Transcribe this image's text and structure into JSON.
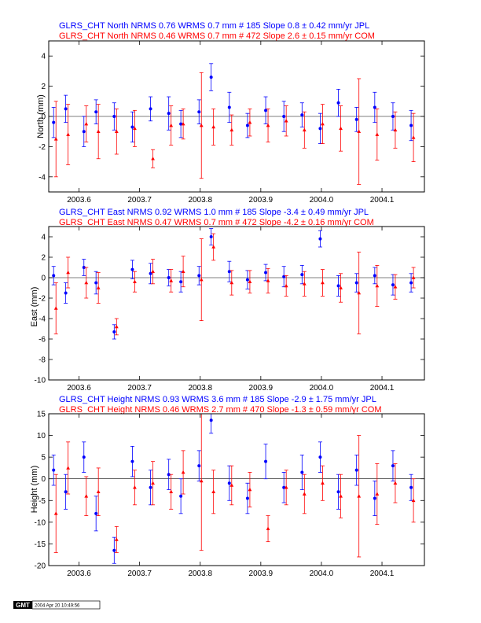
{
  "colors": {
    "blue": "#0000ff",
    "red": "#ff0000",
    "axis": "#000000"
  },
  "panels": [
    {
      "header_blue": "GLRS_CHT North NRMS 0.76 WRMS  0.7 mm # 185 Slope    0.8 ±  0.42 mm/yr JPL",
      "header_red": "GLRS_CHT North NRMS 0.46 WRMS  0.7 mm # 472 Slope    2.6 ±  0.15 mm/yr COM",
      "ylabel": "North (mm)",
      "yticks": [
        "4",
        "2",
        "0",
        "-2",
        "-4"
      ]
    },
    {
      "header_blue": "GLRS_CHT East NRMS 0.92 WRMS  1.0 mm # 185 Slope   -3.4 ±  0.49 mm/yr JPL",
      "header_red": "GLRS_CHT East NRMS 0.47 WRMS  0.7 mm # 472 Slope   -4.2 ±  0.16 mm/yr COM",
      "ylabel": "East (mm)",
      "yticks": [
        "4",
        "2",
        "0",
        "-2",
        "-4",
        "-6",
        "-8",
        "-10"
      ]
    },
    {
      "header_blue": "GLRS_CHT Height NRMS 0.93 WRMS  3.6 mm # 185 Slope   -2.9 ±  1.75 mm/yr JPL",
      "header_red": "GLRS_CHT Height NRMS 0.46 WRMS  2.7 mm # 470 Slope   -1.3 ±  0.59 mm/yr COM",
      "ylabel": "Height (mm)",
      "yticks": [
        "15",
        "10",
        "5",
        "0",
        "-5",
        "-10",
        "-15",
        "-20"
      ]
    }
  ],
  "xticks": [
    "2003.6",
    "2003.7",
    "2003.8",
    "2003.9",
    "2004.0",
    "2004.1"
  ],
  "stamp": {
    "logo": "GMT",
    "text": "2004 Apr 20 10:49:56"
  },
  "chart_data": [
    {
      "type": "scatter",
      "title": "GLRS_CHT North",
      "xlabel": "",
      "ylabel": "North (mm)",
      "xlim": [
        2003.55,
        2004.17
      ],
      "ylim": [
        -5,
        5
      ],
      "yticks": [
        4,
        2,
        0,
        -2,
        -4
      ],
      "series": [
        {
          "name": "JPL",
          "color": "#0000ff",
          "x": [
            2003.56,
            2003.58,
            2003.61,
            2003.63,
            2003.66,
            2003.69,
            2003.72,
            2003.75,
            2003.77,
            2003.8,
            2003.82,
            2003.85,
            2003.88,
            2003.91,
            2003.94,
            2003.97,
            2004.0,
            2004.03,
            2004.06,
            2004.09,
            2004.12,
            2004.15
          ],
          "y": [
            -0.4,
            0.5,
            -1.0,
            0.3,
            0.0,
            -0.7,
            0.5,
            0.2,
            -0.5,
            0.3,
            2.6,
            0.6,
            -0.6,
            0.4,
            0.0,
            0.1,
            -0.8,
            0.9,
            -0.2,
            0.6,
            0.0,
            -0.6
          ],
          "err": [
            1.0,
            0.9,
            1.0,
            0.8,
            0.9,
            1.0,
            0.8,
            1.1,
            0.9,
            0.8,
            0.9,
            1.0,
            0.8,
            0.9,
            1.0,
            0.8,
            1.0,
            0.9,
            0.8,
            1.0,
            0.9,
            1.0
          ]
        },
        {
          "name": "COM",
          "color": "#ff0000",
          "x": [
            2003.56,
            2003.58,
            2003.61,
            2003.63,
            2003.66,
            2003.69,
            2003.72,
            2003.75,
            2003.77,
            2003.8,
            2003.82,
            2003.85,
            2003.88,
            2003.91,
            2003.94,
            2003.97,
            2004.0,
            2004.03,
            2004.06,
            2004.09,
            2004.12,
            2004.15
          ],
          "y": [
            -1.5,
            -1.2,
            -0.5,
            -1.0,
            -1.0,
            -0.8,
            -2.8,
            -0.6,
            -0.5,
            -0.6,
            -0.7,
            -0.9,
            -0.4,
            -0.6,
            -0.3,
            -0.9,
            -0.5,
            -0.8,
            -1.0,
            -1.2,
            -0.9,
            -1.4
          ],
          "err": [
            2.5,
            2.0,
            1.2,
            1.8,
            1.5,
            1.2,
            0.6,
            1.3,
            1.0,
            3.5,
            1.2,
            1.0,
            0.9,
            1.1,
            1.0,
            1.2,
            1.3,
            1.5,
            3.5,
            1.7,
            1.2,
            1.6
          ]
        }
      ]
    },
    {
      "type": "scatter",
      "title": "GLRS_CHT East",
      "xlabel": "",
      "ylabel": "East (mm)",
      "xlim": [
        2003.55,
        2004.17
      ],
      "ylim": [
        -10,
        5
      ],
      "yticks": [
        4,
        2,
        0,
        -2,
        -4,
        -6,
        -8,
        -10
      ],
      "series": [
        {
          "name": "JPL",
          "color": "#0000ff",
          "x": [
            2003.56,
            2003.58,
            2003.61,
            2003.63,
            2003.66,
            2003.69,
            2003.72,
            2003.75,
            2003.77,
            2003.8,
            2003.82,
            2003.85,
            2003.88,
            2003.91,
            2003.94,
            2003.97,
            2004.0,
            2004.03,
            2004.06,
            2004.09,
            2004.12,
            2004.15
          ],
          "y": [
            0.2,
            -1.5,
            1.0,
            -0.5,
            -5.3,
            0.8,
            0.4,
            0.0,
            -0.4,
            0.2,
            4.0,
            0.6,
            -0.2,
            0.5,
            0.1,
            0.3,
            3.8,
            -0.8,
            -0.5,
            0.2,
            -0.7,
            -0.5
          ],
          "err": [
            0.9,
            1.0,
            0.8,
            1.1,
            0.7,
            0.9,
            1.0,
            0.8,
            1.0,
            0.9,
            0.8,
            1.0,
            0.9,
            0.8,
            1.0,
            0.9,
            0.8,
            1.0,
            0.9,
            0.8,
            1.0,
            0.9
          ]
        },
        {
          "name": "COM",
          "color": "#ff0000",
          "x": [
            2003.56,
            2003.58,
            2003.61,
            2003.63,
            2003.66,
            2003.69,
            2003.72,
            2003.75,
            2003.77,
            2003.8,
            2003.82,
            2003.85,
            2003.88,
            2003.91,
            2003.94,
            2003.97,
            2004.0,
            2004.03,
            2004.06,
            2004.09,
            2004.12,
            2004.15
          ],
          "y": [
            -3.0,
            0.5,
            -0.5,
            -1.0,
            -4.8,
            -0.4,
            0.6,
            -0.3,
            0.6,
            -0.2,
            3.0,
            -0.5,
            -0.4,
            -0.3,
            -0.8,
            -0.6,
            -0.5,
            -1.0,
            -1.5,
            -0.8,
            -0.9,
            0.0
          ],
          "err": [
            2.5,
            1.5,
            1.5,
            1.5,
            0.8,
            1.0,
            1.2,
            1.1,
            1.5,
            4.0,
            1.3,
            1.2,
            1.1,
            1.2,
            1.0,
            1.2,
            1.3,
            1.4,
            4.0,
            2.0,
            1.2,
            1.0
          ]
        }
      ]
    },
    {
      "type": "scatter",
      "title": "GLRS_CHT Height",
      "xlabel": "",
      "ylabel": "Height (mm)",
      "xlim": [
        2003.55,
        2004.17
      ],
      "ylim": [
        -20,
        15
      ],
      "yticks": [
        15,
        10,
        5,
        0,
        -5,
        -10,
        -15,
        -20
      ],
      "series": [
        {
          "name": "JPL",
          "color": "#0000ff",
          "x": [
            2003.56,
            2003.58,
            2003.61,
            2003.63,
            2003.66,
            2003.69,
            2003.72,
            2003.75,
            2003.77,
            2003.8,
            2003.82,
            2003.85,
            2003.88,
            2003.91,
            2003.94,
            2003.97,
            2004.0,
            2004.03,
            2004.06,
            2004.09,
            2004.12,
            2004.15
          ],
          "y": [
            2.0,
            -3.0,
            5.0,
            -8.0,
            -16.5,
            4.0,
            -2.0,
            1.0,
            -4.0,
            3.0,
            13.5,
            -1.0,
            -4.5,
            4.0,
            -2.0,
            1.5,
            5.0,
            -3.0,
            2.0,
            -4.5,
            3.0,
            -2.0
          ],
          "err": [
            3.5,
            4.0,
            3.5,
            4.0,
            3.0,
            3.5,
            4.0,
            3.5,
            4.0,
            3.5,
            3.0,
            4.0,
            3.5,
            4.0,
            3.5,
            4.0,
            3.5,
            4.0,
            3.5,
            4.0,
            3.5,
            3.0
          ]
        },
        {
          "name": "COM",
          "color": "#ff0000",
          "x": [
            2003.56,
            2003.58,
            2003.61,
            2003.63,
            2003.66,
            2003.69,
            2003.72,
            2003.75,
            2003.77,
            2003.8,
            2003.82,
            2003.85,
            2003.88,
            2003.91,
            2003.94,
            2003.97,
            2004.0,
            2004.03,
            2004.06,
            2004.09,
            2004.12,
            2004.15
          ],
          "y": [
            -8.0,
            2.5,
            -4.0,
            -3.0,
            -14.0,
            -2.0,
            -1.0,
            -3.0,
            1.5,
            -0.5,
            -3.0,
            -1.5,
            -2.5,
            -11.5,
            -2.0,
            -3.5,
            -1.0,
            -4.0,
            -4.0,
            -3.5,
            -1.0,
            -5.0
          ],
          "err": [
            9.0,
            6.0,
            4.5,
            5.5,
            3.0,
            4.0,
            5.0,
            4.0,
            5.0,
            16.0,
            5.0,
            4.5,
            4.0,
            3.0,
            4.0,
            4.5,
            4.0,
            5.0,
            14.0,
            7.0,
            4.5,
            5.0
          ]
        }
      ]
    }
  ]
}
